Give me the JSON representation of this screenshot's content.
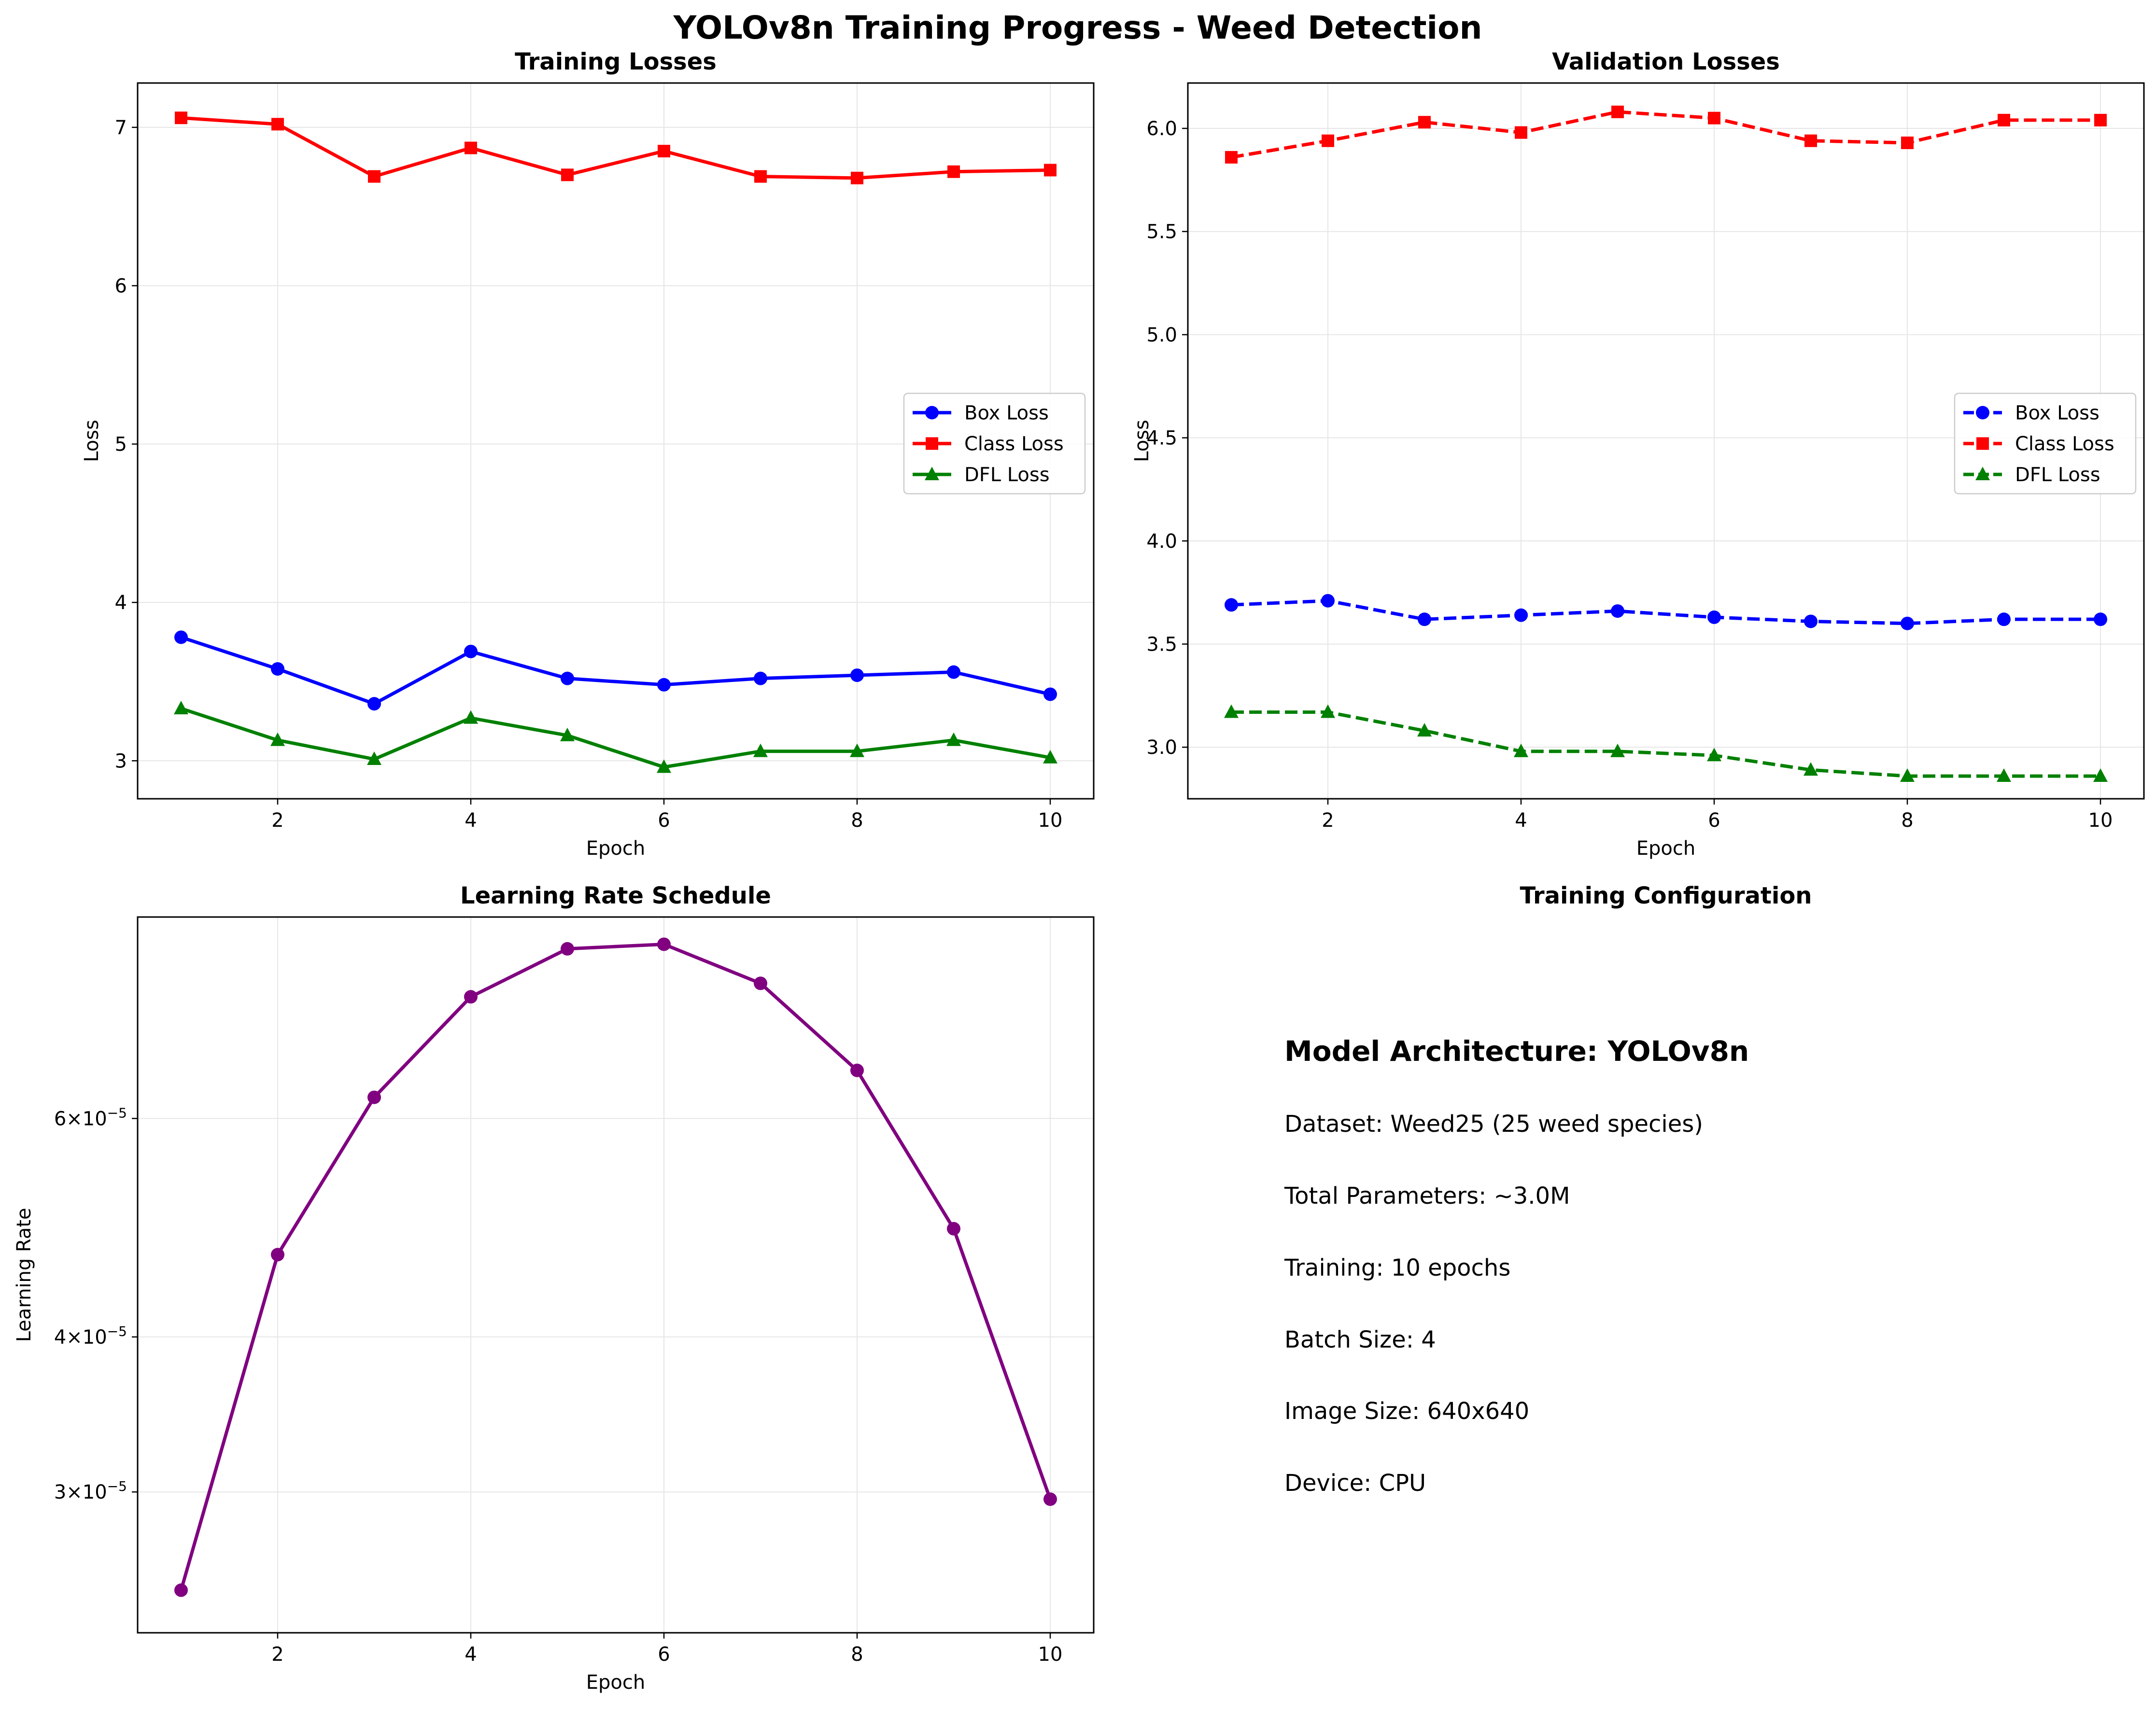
{
  "figure_title": "YOLOv8n Training Progress - Weed Detection",
  "colors": {
    "box": "#0000ff",
    "class": "#ff0000",
    "dfl": "#008000",
    "lr": "#800080",
    "grid": "#e6e6e6"
  },
  "chart_data": [
    {
      "type": "line",
      "title": "Training Losses",
      "xlabel": "Epoch",
      "ylabel": "Loss",
      "x": [
        1,
        2,
        3,
        4,
        5,
        6,
        7,
        8,
        9,
        10
      ],
      "xlim": [
        0.55,
        10.45
      ],
      "ylim": [
        2.76,
        7.28
      ],
      "xticks": [
        2,
        4,
        6,
        8,
        10
      ],
      "yticks": [
        3,
        4,
        5,
        6,
        7
      ],
      "grid": true,
      "legend": "center-right",
      "series": [
        {
          "name": "Box Loss",
          "color": "#0000ff",
          "marker": "circle",
          "dash": "solid",
          "values": [
            3.78,
            3.58,
            3.36,
            3.69,
            3.52,
            3.48,
            3.52,
            3.54,
            3.56,
            3.42
          ]
        },
        {
          "name": "Class Loss",
          "color": "#ff0000",
          "marker": "square",
          "dash": "solid",
          "values": [
            7.06,
            7.02,
            6.69,
            6.87,
            6.7,
            6.85,
            6.69,
            6.68,
            6.72,
            6.73
          ]
        },
        {
          "name": "DFL Loss",
          "color": "#008000",
          "marker": "triangle",
          "dash": "solid",
          "values": [
            3.33,
            3.13,
            3.01,
            3.27,
            3.16,
            2.96,
            3.06,
            3.06,
            3.13,
            3.02
          ]
        }
      ]
    },
    {
      "type": "line",
      "title": "Validation Losses",
      "xlabel": "Epoch",
      "ylabel": "Loss",
      "x": [
        1,
        2,
        3,
        4,
        5,
        6,
        7,
        8,
        9,
        10
      ],
      "xlim": [
        0.55,
        10.45
      ],
      "ylim": [
        2.75,
        6.22
      ],
      "xticks": [
        2,
        4,
        6,
        8,
        10
      ],
      "yticks": [
        3.0,
        3.5,
        4.0,
        4.5,
        5.0,
        5.5,
        6.0
      ],
      "ytick_decimals": 1,
      "grid": true,
      "legend": "center-right",
      "series": [
        {
          "name": "Box Loss",
          "color": "#0000ff",
          "marker": "circle",
          "dash": "dashed",
          "values": [
            3.69,
            3.71,
            3.62,
            3.64,
            3.66,
            3.63,
            3.61,
            3.6,
            3.62,
            3.62
          ]
        },
        {
          "name": "Class Loss",
          "color": "#ff0000",
          "marker": "square",
          "dash": "dashed",
          "values": [
            5.86,
            5.94,
            6.03,
            5.98,
            6.08,
            6.05,
            5.94,
            5.93,
            6.04,
            6.04
          ]
        },
        {
          "name": "DFL Loss",
          "color": "#008000",
          "marker": "triangle",
          "dash": "dashed",
          "values": [
            3.17,
            3.17,
            3.08,
            2.98,
            2.98,
            2.96,
            2.89,
            2.86,
            2.86,
            2.86
          ]
        }
      ]
    },
    {
      "type": "line",
      "title": "Learning Rate Schedule",
      "xlabel": "Epoch",
      "ylabel": "Learning Rate",
      "yscale": "log",
      "x": [
        1,
        2,
        3,
        4,
        5,
        6,
        7,
        8,
        9,
        10
      ],
      "xlim": [
        0.55,
        10.45
      ],
      "ylim": [
        2.31e-05,
        8.72e-05
      ],
      "xticks": [
        2,
        4,
        6,
        8,
        10
      ],
      "yticks": [
        {
          "value": 6e-05,
          "mantissa": "6",
          "exp": "−5"
        },
        {
          "value": 4e-05,
          "mantissa": "4",
          "exp": "−5"
        },
        {
          "value": 3e-05,
          "mantissa": "3",
          "exp": "−5"
        }
      ],
      "grid": true,
      "series": [
        {
          "color": "#800080",
          "marker": "circle",
          "dash": "solid",
          "values": [
            2.5e-05,
            4.66e-05,
            6.24e-05,
            7.52e-05,
            8.22e-05,
            8.29e-05,
            7.71e-05,
            6.56e-05,
            4.89e-05,
            2.96e-05
          ]
        }
      ]
    }
  ],
  "config_panel": {
    "title": "Training Configuration",
    "heading": "Model Architecture: YOLOv8n",
    "lines": [
      "Dataset: Weed25 (25 weed species)",
      "Total Parameters: ~3.0M",
      "Training: 10 epochs",
      "Batch Size: 4",
      "Image Size: 640x640",
      "Device: CPU"
    ]
  }
}
